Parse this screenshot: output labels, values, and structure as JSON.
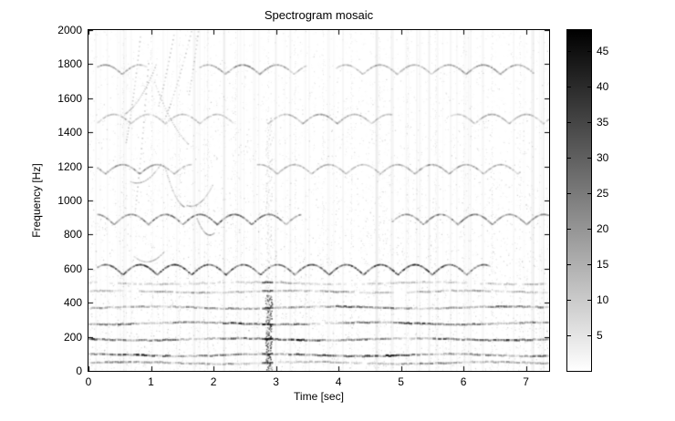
{
  "figure": {
    "background": "#ffffff",
    "axis_color": "#000000",
    "text_color": "#000000"
  },
  "chart_data": {
    "type": "heatmap",
    "subtype": "spectrogram",
    "title": "Spectrogram mosaic",
    "xlabel": "Time [sec]",
    "ylabel": "Frequency [Hz]",
    "xlim": [
      0,
      7.37
    ],
    "ylim": [
      0,
      2000
    ],
    "xticks": [
      0,
      1,
      2,
      3,
      4,
      5,
      6,
      7
    ],
    "yticks": [
      0,
      200,
      400,
      600,
      800,
      1000,
      1200,
      1400,
      1600,
      1800,
      2000
    ],
    "grid": false,
    "colorbar": {
      "min": 0,
      "max": 48,
      "ticks": [
        5,
        10,
        15,
        20,
        25,
        30,
        35,
        40,
        45
      ],
      "colormap": "gray-inverted",
      "top_color": "#000000",
      "bottom_color": "#ffffff"
    },
    "content": {
      "background": "#ffffff",
      "fundamental_hz": 93,
      "low_harmonics_hz": [
        47,
        93,
        186,
        279,
        372,
        465,
        515
      ],
      "low_harmonics_intensity": [
        0.5,
        0.95,
        0.9,
        0.8,
        0.68,
        0.42,
        0.3
      ],
      "vibrato_bands": [
        {
          "center_hz": 590,
          "amp_hz": 60,
          "period_sec": 0.55,
          "intensity": 0.8
        },
        {
          "center_hz": 885,
          "amp_hz": 60,
          "period_sec": 0.55,
          "intensity": 0.6
        },
        {
          "center_hz": 1180,
          "amp_hz": 55,
          "period_sec": 0.55,
          "intensity": 0.35
        },
        {
          "center_hz": 1475,
          "amp_hz": 55,
          "period_sec": 0.55,
          "intensity": 0.3
        },
        {
          "center_hz": 1765,
          "amp_hz": 55,
          "period_sec": 0.55,
          "intensity": 0.38
        }
      ],
      "transient_event": {
        "time_sec": 2.87,
        "strong_below_hz": 450,
        "faint_up_to_hz": 1500,
        "intensity": 0.9
      },
      "onset_times_sec": [
        0.55,
        1.0,
        1.45,
        1.9,
        2.35,
        2.87,
        3.3,
        3.75,
        4.2,
        4.65,
        5.1,
        5.55,
        6.0,
        6.45,
        6.9
      ]
    }
  }
}
